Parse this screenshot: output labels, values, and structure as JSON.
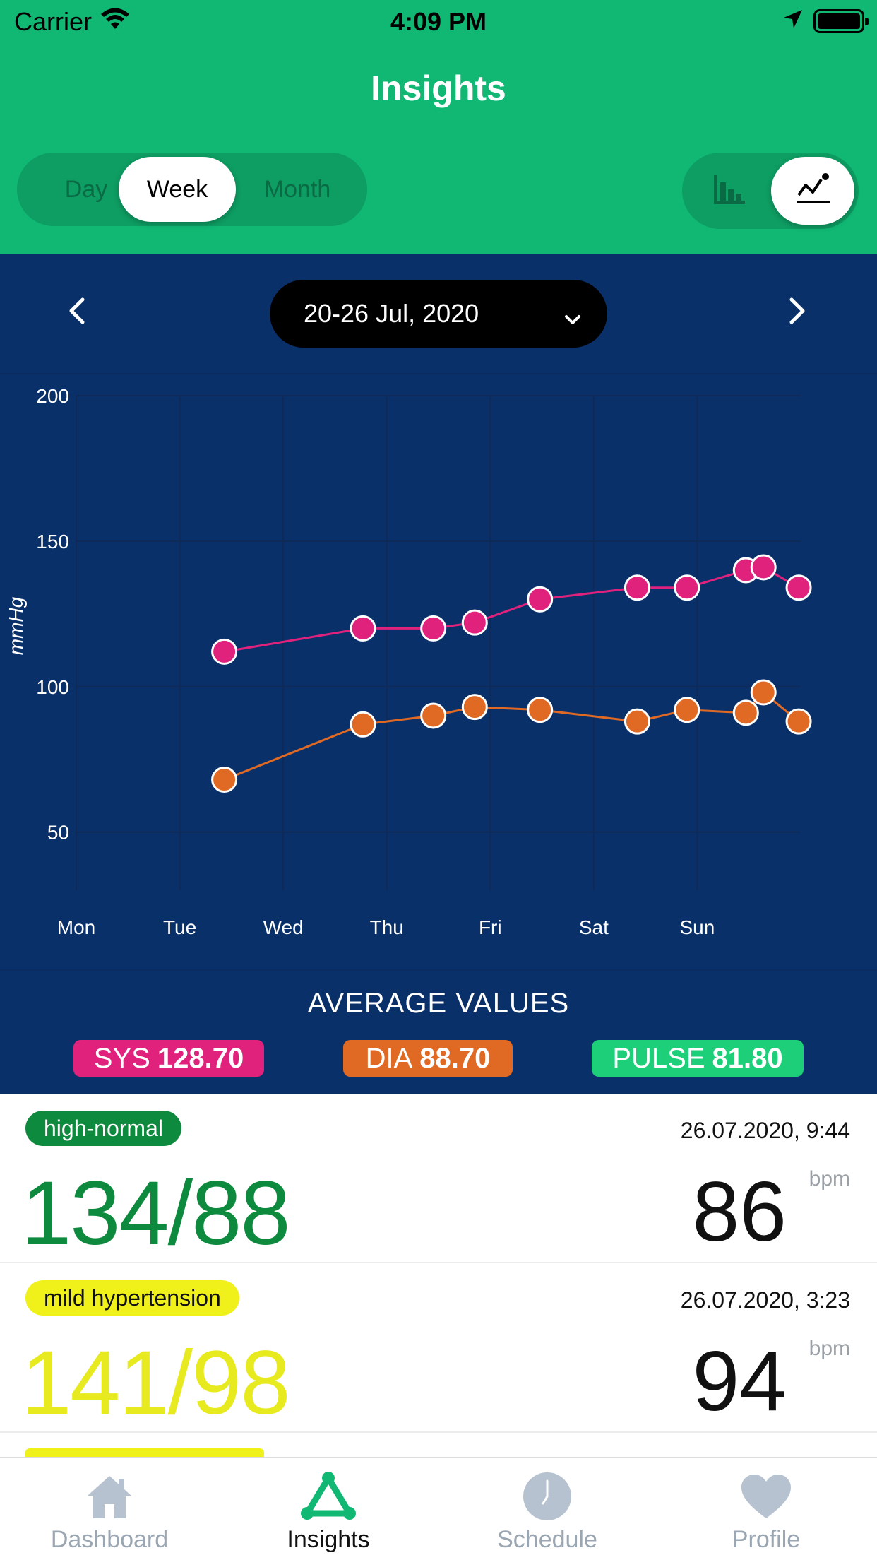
{
  "status_bar": {
    "carrier": "Carrier",
    "time": "4:09 PM"
  },
  "header": {
    "title": "Insights"
  },
  "period_tabs": [
    {
      "label": "Day",
      "selected": false
    },
    {
      "label": "Week",
      "selected": true
    },
    {
      "label": "Month",
      "selected": false
    }
  ],
  "view_toggle": {
    "options": [
      "bar-chart-icon",
      "line-chart-icon"
    ],
    "selected": "line-chart-icon"
  },
  "date_range": {
    "label": "20-26 Jul, 2020"
  },
  "chart_data": {
    "type": "line",
    "ylabel": "mmHg",
    "ylim": [
      30,
      200
    ],
    "yticks": [
      50,
      100,
      150,
      200
    ],
    "x_categories": [
      "Mon",
      "Tue",
      "Wed",
      "Thu",
      "Fri",
      "Sat",
      "Sun"
    ],
    "xlim": [
      0,
      7
    ],
    "grid": true,
    "series": [
      {
        "key": "sys",
        "color": "#e0227c",
        "points": [
          [
            1.43,
            112
          ],
          [
            2.77,
            120
          ],
          [
            3.45,
            120
          ],
          [
            3.85,
            122
          ],
          [
            4.48,
            130
          ],
          [
            5.42,
            134
          ],
          [
            5.9,
            134
          ],
          [
            6.47,
            140
          ],
          [
            6.64,
            141
          ],
          [
            6.98,
            134
          ]
        ]
      },
      {
        "key": "dia",
        "color": "#e06a24",
        "points": [
          [
            1.43,
            68
          ],
          [
            2.77,
            87
          ],
          [
            3.45,
            90
          ],
          [
            3.85,
            93
          ],
          [
            4.48,
            92
          ],
          [
            5.42,
            88
          ],
          [
            5.9,
            92
          ],
          [
            6.47,
            91
          ],
          [
            6.64,
            98
          ],
          [
            6.98,
            88
          ]
        ]
      }
    ]
  },
  "averages": {
    "title": "AVERAGE VALUES",
    "sys": {
      "label": "SYS",
      "value": "128.70",
      "color": "#e0227c"
    },
    "dia": {
      "label": "DIA",
      "value": "88.70",
      "color": "#e06a24"
    },
    "pulse": {
      "label": "PULSE",
      "value": "81.80",
      "color": "#1ccf78"
    }
  },
  "readings": [
    {
      "category": "high-normal",
      "datetime": "26.07.2020, 9:44",
      "bp": "134/88",
      "pulse": "86",
      "unit": "bpm",
      "color": "#0e8a3e"
    },
    {
      "category": "mild hypertension",
      "datetime": "26.07.2020, 3:23",
      "bp": "141/98",
      "pulse": "94",
      "unit": "bpm",
      "color": "#e8ea20"
    }
  ],
  "tabbar": {
    "items": [
      {
        "label": "Dashboard",
        "icon": "home-icon",
        "active": false
      },
      {
        "label": "Insights",
        "icon": "insights-icon",
        "active": true
      },
      {
        "label": "Schedule",
        "icon": "clock-icon",
        "active": false
      },
      {
        "label": "Profile",
        "icon": "heart-icon",
        "active": false
      }
    ]
  }
}
